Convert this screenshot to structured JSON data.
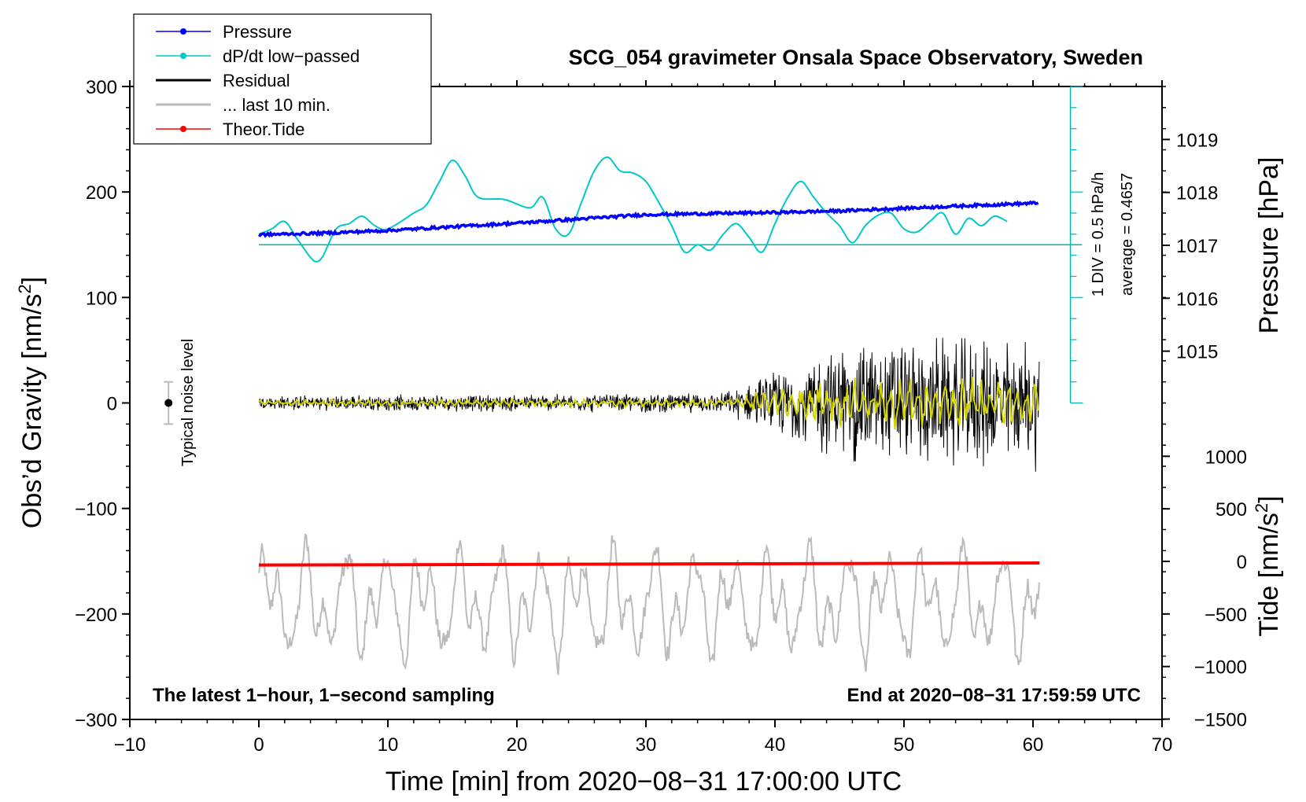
{
  "chart_data": {
    "type": "line",
    "title": "SCG_054 gravimeter Onsala Space Observatory, Sweden",
    "xlabel": "Time [min] from 2020−08−31 17:00:00 UTC",
    "ylabel_left_main": "Obs’d Gravity [nm/s",
    "ylabel_left_sup": "2",
    "ylabel_left_close": "]",
    "ylabel_right_pressure": "Pressure [hPa]",
    "ylabel_right_tide_main": "Tide [nm/s",
    "ylabel_right_tide_sup": "2",
    "ylabel_right_tide_close": "]",
    "xlim": [
      -10,
      70
    ],
    "x_ticks": [
      "−10",
      "0",
      "10",
      "20",
      "30",
      "40",
      "50",
      "60",
      "70"
    ],
    "ylim_left": [
      -300,
      300
    ],
    "y_ticks_left": [
      "−300",
      "−200",
      "−100",
      "0",
      "100",
      "200",
      "300"
    ],
    "pressure_ticks": [
      "1015",
      "1016",
      "1017",
      "1018",
      "1019"
    ],
    "tide_ticks": [
      "−1500",
      "−1000",
      "−500",
      "0",
      "500",
      "1000"
    ],
    "legend": [
      {
        "label": "Pressure",
        "color": "#0000ff",
        "marker": true
      },
      {
        "label": "dP/dt low−passed",
        "color": "#00c8c8",
        "marker": true
      },
      {
        "label": "Residual",
        "color": "#000000",
        "marker": false
      },
      {
        "label": "... last 10 min.",
        "color": "#bbbbbb",
        "marker": false
      },
      {
        "label": "Theor.Tide",
        "color": "#ff0000",
        "marker": true
      }
    ],
    "annotations": {
      "bottom_left": "The latest 1−hour, 1−second sampling",
      "bottom_right": "End at 2020−08−31 17:59:59 UTC",
      "noise_label": "Typical noise level",
      "dpdt_scale": "1 DIV = 0.5 hPa/h",
      "dpdt_average": "average = 0.4657"
    },
    "noise_level": {
      "x": -7,
      "center": 0,
      "half_range": 20
    },
    "series": [
      {
        "name": "Pressure",
        "axis": "pressure_hPa",
        "color": "#0000ff",
        "x": [
          0,
          5,
          10,
          15,
          20,
          25,
          30,
          35,
          40,
          45,
          50,
          55,
          60.5
        ],
        "values": [
          1017.2,
          1017.23,
          1017.28,
          1017.35,
          1017.42,
          1017.5,
          1017.58,
          1017.6,
          1017.62,
          1017.65,
          1017.7,
          1017.75,
          1017.8
        ]
      },
      {
        "name": "dP/dt low-passed",
        "axis": "gravity_nm_s2",
        "color": "#00c8c8",
        "x": [
          0,
          1,
          2,
          3,
          4,
          4.5,
          5,
          6,
          7,
          8,
          9,
          10,
          12,
          13,
          14,
          15,
          16,
          17,
          19,
          21,
          22,
          23,
          24,
          25,
          26,
          27,
          28,
          29,
          30,
          31,
          32,
          33,
          34,
          35,
          36,
          37,
          38,
          39,
          40,
          41,
          42,
          43,
          44,
          45,
          46,
          47,
          48,
          49,
          50,
          51,
          52,
          53,
          54,
          55,
          56,
          57,
          58
        ],
        "values": [
          160,
          165,
          172,
          155,
          138,
          134,
          140,
          165,
          170,
          177,
          168,
          165,
          180,
          188,
          210,
          230,
          215,
          195,
          193,
          185,
          195,
          165,
          160,
          190,
          220,
          233,
          220,
          218,
          210,
          190,
          168,
          143,
          150,
          145,
          160,
          170,
          157,
          143,
          170,
          195,
          210,
          195,
          180,
          168,
          152,
          168,
          178,
          180,
          165,
          162,
          172,
          180,
          160,
          175,
          168,
          177,
          172
        ]
      },
      {
        "name": "Residual",
        "axis": "gravity_nm_s2",
        "color": "#000000",
        "x": [
          0,
          36,
          46,
          60.5
        ],
        "amplitude": [
          5,
          7,
          45,
          45
        ]
      },
      {
        "name": "... last 10 min.",
        "axis": "gravity_nm_s2",
        "color": "#bbbbbb",
        "x": [
          0,
          60.5
        ],
        "mean": -190,
        "amplitude": [
          60,
          60
        ]
      },
      {
        "name": "Theor.Tide",
        "axis": "tide_nm_s2",
        "color": "#ff0000",
        "x": [
          0,
          60.5
        ],
        "values": [
          -35,
          -15
        ]
      }
    ],
    "grid": false,
    "legend_position": "top-left"
  }
}
